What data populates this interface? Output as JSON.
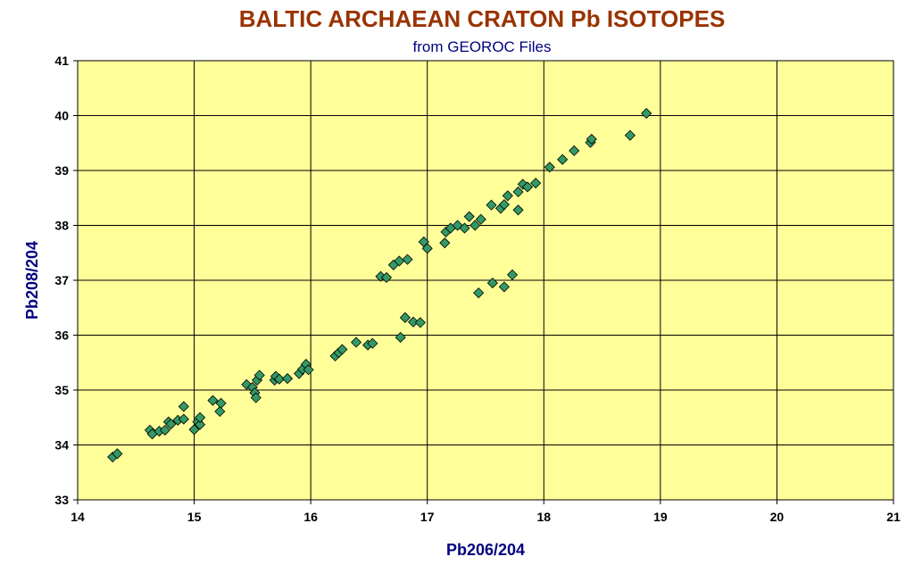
{
  "chart_data": {
    "type": "scatter",
    "title": "BALTIC ARCHAEAN CRATON Pb ISOTOPES",
    "subtitle": "from GEOROC Files",
    "xlabel": "Pb206/204",
    "ylabel": "Pb208/204",
    "xlim": [
      14,
      21
    ],
    "ylim": [
      33,
      41
    ],
    "xticks": [
      "14",
      "15",
      "16",
      "17",
      "18",
      "19",
      "20",
      "21"
    ],
    "yticks": [
      "33",
      "34",
      "35",
      "36",
      "37",
      "38",
      "39",
      "40",
      "41"
    ],
    "grid": true,
    "legend": "none",
    "colors": {
      "title": "#993300",
      "subtitle": "#000080",
      "axis_label": "#000080",
      "plot_bg": "#FFFF99",
      "marker_fill": "#339966",
      "marker_stroke": "#000000"
    },
    "points": [
      [
        14.3,
        33.78
      ],
      [
        14.34,
        33.84
      ],
      [
        14.62,
        34.27
      ],
      [
        14.64,
        34.2
      ],
      [
        14.7,
        34.25
      ],
      [
        14.75,
        34.27
      ],
      [
        14.78,
        34.42
      ],
      [
        14.8,
        34.38
      ],
      [
        14.86,
        34.45
      ],
      [
        14.91,
        34.47
      ],
      [
        14.91,
        34.7
      ],
      [
        15.0,
        34.28
      ],
      [
        15.03,
        34.42
      ],
      [
        15.05,
        34.37
      ],
      [
        15.05,
        34.5
      ],
      [
        15.16,
        34.81
      ],
      [
        15.22,
        34.61
      ],
      [
        15.23,
        34.76
      ],
      [
        15.45,
        35.1
      ],
      [
        15.5,
        35.05
      ],
      [
        15.52,
        34.95
      ],
      [
        15.53,
        34.86
      ],
      [
        15.54,
        35.18
      ],
      [
        15.56,
        35.27
      ],
      [
        15.69,
        35.18
      ],
      [
        15.7,
        35.25
      ],
      [
        15.73,
        35.2
      ],
      [
        15.8,
        35.21
      ],
      [
        15.9,
        35.3
      ],
      [
        15.93,
        35.38
      ],
      [
        15.96,
        35.47
      ],
      [
        15.98,
        35.37
      ],
      [
        16.21,
        35.62
      ],
      [
        16.24,
        35.68
      ],
      [
        16.27,
        35.74
      ],
      [
        16.39,
        35.87
      ],
      [
        16.49,
        35.82
      ],
      [
        16.53,
        35.85
      ],
      [
        16.6,
        37.07
      ],
      [
        16.65,
        37.05
      ],
      [
        16.71,
        37.28
      ],
      [
        16.76,
        37.35
      ],
      [
        16.83,
        37.38
      ],
      [
        16.77,
        35.96
      ],
      [
        16.81,
        36.32
      ],
      [
        16.88,
        36.24
      ],
      [
        16.94,
        36.23
      ],
      [
        16.97,
        37.7
      ],
      [
        17.0,
        37.58
      ],
      [
        17.15,
        37.68
      ],
      [
        17.16,
        37.88
      ],
      [
        17.2,
        37.95
      ],
      [
        17.26,
        38.0
      ],
      [
        17.32,
        37.95
      ],
      [
        17.36,
        38.16
      ],
      [
        17.41,
        38.0
      ],
      [
        17.46,
        38.11
      ],
      [
        17.44,
        36.77
      ],
      [
        17.56,
        36.95
      ],
      [
        17.66,
        36.88
      ],
      [
        17.73,
        37.1
      ],
      [
        17.55,
        38.37
      ],
      [
        17.63,
        38.31
      ],
      [
        17.66,
        38.38
      ],
      [
        17.69,
        38.54
      ],
      [
        17.78,
        38.28
      ],
      [
        17.78,
        38.61
      ],
      [
        17.82,
        38.75
      ],
      [
        17.86,
        38.7
      ],
      [
        17.93,
        38.77
      ],
      [
        18.05,
        39.06
      ],
      [
        18.16,
        39.2
      ],
      [
        18.26,
        39.36
      ],
      [
        18.4,
        39.51
      ],
      [
        18.41,
        39.57
      ],
      [
        18.74,
        39.64
      ],
      [
        18.88,
        40.04
      ]
    ]
  }
}
